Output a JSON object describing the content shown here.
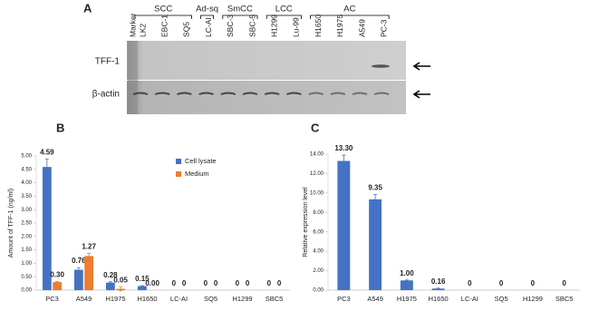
{
  "panel_a": {
    "label": "A",
    "marker": "Marker",
    "rows": [
      "TFF-1",
      "β-actin"
    ],
    "groups": [
      {
        "name": "SCC",
        "lanes": [
          "LK2",
          "EBC-1",
          "SQ5"
        ]
      },
      {
        "name": "Ad-sq",
        "lanes": [
          "LC-AI"
        ]
      },
      {
        "name": "SmCC",
        "lanes": [
          "SBC-3",
          "SBC-5"
        ]
      },
      {
        "name": "LCC",
        "lanes": [
          "H1299",
          "Lu-99"
        ]
      },
      {
        "name": "AC",
        "lanes": [
          "H1650",
          "H1975",
          "A549",
          "PC-3"
        ]
      }
    ]
  },
  "chart_data": [
    {
      "panel_label": "B",
      "type": "bar",
      "y_label": "Amount of TFF-1 (ng/ml)",
      "categories": [
        "PC3",
        "A549",
        "H1975",
        "H1650",
        "LC-AI",
        "SQ5",
        "H1299",
        "SBC5"
      ],
      "series": [
        {
          "name": "Cell lysate",
          "color": "#4472c4",
          "values": [
            4.59,
            0.76,
            0.28,
            0.15,
            0,
            0,
            0,
            0
          ],
          "value_labels": [
            "4.59",
            "0.76",
            "0.28",
            "0.15",
            "0",
            "0",
            "0",
            "0"
          ],
          "errors": [
            0.3,
            0.08,
            0.03,
            0.02,
            0,
            0,
            0,
            0
          ]
        },
        {
          "name": "Medium",
          "color": "#ed7d31",
          "values": [
            0.3,
            1.27,
            0.05,
            0,
            0,
            0,
            0,
            0
          ],
          "value_labels": [
            "0.30",
            "1.27",
            "0.05",
            "0.00",
            "0",
            "0",
            "0",
            "0"
          ],
          "errors": [
            0.02,
            0.1,
            0.08,
            0,
            0,
            0,
            0,
            0
          ]
        }
      ],
      "ylim": [
        0,
        5
      ],
      "yticks": [
        {
          "value": 0,
          "label": "0.00"
        },
        {
          "value": 0.5,
          "label": "0.50"
        },
        {
          "value": 1,
          "label": "1.00"
        },
        {
          "value": 1.5,
          "label": "1.50"
        },
        {
          "value": 2,
          "label": "2.00"
        },
        {
          "value": 2.5,
          "label": "2.50"
        },
        {
          "value": 3,
          "label": "3.00"
        },
        {
          "value": 3.5,
          "label": "3.50"
        },
        {
          "value": 4,
          "label": "4.00"
        },
        {
          "value": 4.5,
          "label": "4.50"
        },
        {
          "value": 5,
          "label": "5.00"
        }
      ],
      "legend": "upper right"
    },
    {
      "panel_label": "C",
      "type": "bar",
      "y_label": "Relative expression level",
      "categories": [
        "PC3",
        "A549",
        "H1975",
        "H1650",
        "LC-AI",
        "SQ5",
        "H1299",
        "SBC5"
      ],
      "series": [
        {
          "color": "#4472c4",
          "values": [
            13.3,
            9.35,
            1,
            0.16,
            0,
            0,
            0,
            0
          ],
          "value_labels": [
            "13.30",
            "9.35",
            "1.00",
            "0.16",
            "0",
            "0",
            "0",
            "0"
          ],
          "errors": [
            0.6,
            0.5,
            0.05,
            0.05,
            0,
            0,
            0,
            0
          ]
        }
      ],
      "ylim": [
        0,
        14
      ],
      "yticks": [
        {
          "value": 0,
          "label": "0.00"
        },
        {
          "value": 2,
          "label": "2.00"
        },
        {
          "value": 4,
          "label": "4.00"
        },
        {
          "value": 6,
          "label": "6.00"
        },
        {
          "value": 8,
          "label": "8.00"
        },
        {
          "value": 10,
          "label": "10.00"
        },
        {
          "value": 12,
          "label": "12.00"
        },
        {
          "value": 14,
          "label": "14.00"
        }
      ]
    }
  ]
}
